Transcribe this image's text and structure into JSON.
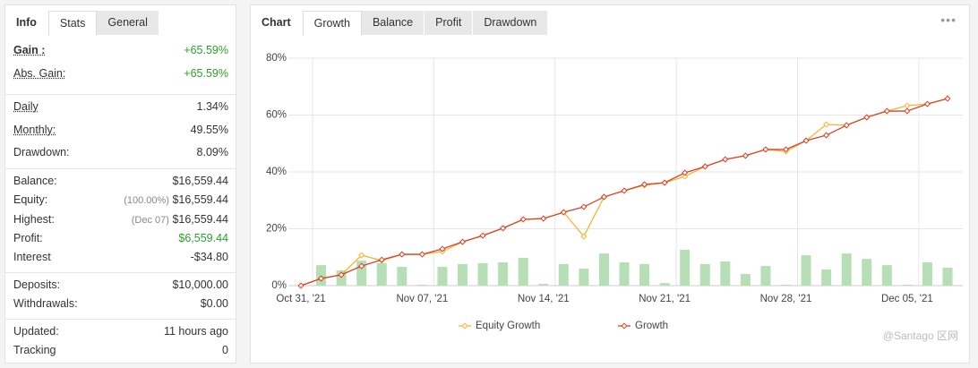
{
  "info_panel": {
    "tabs": [
      "Info",
      "Stats",
      "General"
    ],
    "groups": [
      [
        {
          "label": "Gain :",
          "value": "+65.59%"
        },
        {
          "label": "Abs. Gain:",
          "value": "+65.59%"
        }
      ],
      [
        {
          "label": "Daily",
          "value": "1.34%"
        },
        {
          "label": "Monthly:",
          "value": "49.55%"
        },
        {
          "label": "Drawdown:",
          "value": "8.09%"
        }
      ],
      [
        {
          "label": "Balance:",
          "value": "$16,559.44"
        },
        {
          "label": "Equity:",
          "note": "(100.00%)",
          "value": "$16,559.44"
        },
        {
          "label": "Highest:",
          "note": "(Dec 07)",
          "value": "$16,559.44"
        },
        {
          "label": "Profit:",
          "value": "$6,559.44"
        },
        {
          "label": "Interest",
          "value": "-$34.80"
        }
      ],
      [
        {
          "label": "Deposits:",
          "value": "$10,000.00"
        },
        {
          "label": "Withdrawals:",
          "value": "$0.00"
        }
      ],
      [
        {
          "label": "Updated:",
          "value": "11 hours ago"
        },
        {
          "label": "Tracking",
          "value": "0"
        }
      ]
    ]
  },
  "chart_panel": {
    "tabs": [
      "Chart",
      "Growth",
      "Balance",
      "Profit",
      "Drawdown"
    ],
    "menu": "•••"
  },
  "watermark": "@Santago 区网",
  "chart_data": {
    "type": "line",
    "categories": [
      "Oct 31, '21",
      null,
      null,
      null,
      null,
      null,
      "Nov 07, '21",
      null,
      null,
      null,
      null,
      null,
      "Nov 14, '21",
      null,
      null,
      null,
      null,
      null,
      "Nov 21, '21",
      null,
      null,
      null,
      null,
      null,
      "Nov 28, '21",
      null,
      null,
      null,
      null,
      null,
      "Dec 05, '21",
      null,
      null
    ],
    "series": [
      {
        "name": "Equity Growth",
        "color": "#f2b632",
        "values": [
          0,
          2.5,
          3.8,
          10.7,
          8.8,
          11.0,
          11.0,
          12.0,
          15.4,
          17.6,
          20.2,
          23.3,
          23.6,
          25.8,
          17.3,
          31.2,
          33.4,
          35.3,
          36.2,
          38.4,
          41.9,
          44.4,
          45.7,
          47.9,
          47.2,
          51.0,
          56.7,
          56.4,
          59.2,
          61.4,
          63.3,
          63.9,
          65.8
        ]
      },
      {
        "name": "Growth",
        "color": "#d9432b",
        "values": [
          0,
          2.5,
          3.8,
          6.9,
          9.1,
          11.0,
          11.0,
          12.9,
          15.4,
          17.6,
          20.2,
          23.3,
          23.6,
          25.8,
          27.7,
          31.2,
          33.4,
          35.6,
          36.2,
          39.7,
          41.9,
          44.4,
          45.7,
          47.9,
          47.9,
          51.0,
          52.9,
          56.4,
          59.2,
          61.4,
          61.4,
          63.9,
          65.8
        ]
      }
    ],
    "bars": {
      "color": "#b6dfb6",
      "values": [
        null,
        7.2,
        5.4,
        8.8,
        7.9,
        6.6,
        0.3,
        6.6,
        7.6,
        7.9,
        8.2,
        9.8,
        0.6,
        7.6,
        6.0,
        11.3,
        8.2,
        7.6,
        0.9,
        12.6,
        7.6,
        8.5,
        4.1,
        6.9,
        0.3,
        10.7,
        5.7,
        11.3,
        9.4,
        7.2,
        0.3,
        8.2,
        6.3
      ]
    },
    "ylim": [
      0,
      80
    ],
    "yticks": [
      {
        "value": 0,
        "label": "0%"
      },
      {
        "value": 20,
        "label": "20%"
      },
      {
        "value": 40,
        "label": "40%"
      },
      {
        "value": 60,
        "label": "60%"
      },
      {
        "value": 80,
        "label": "80%"
      }
    ],
    "grid": true,
    "legend": "bottom"
  }
}
